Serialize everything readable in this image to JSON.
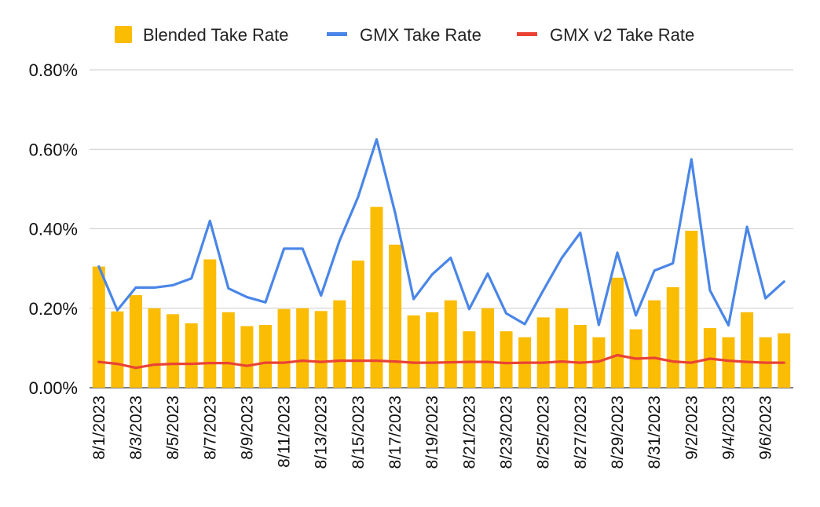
{
  "chart_data": {
    "type": "bar+line",
    "title": "",
    "xlabel": "",
    "ylabel": "",
    "ylim": [
      0,
      0.8
    ],
    "grid": true,
    "legend_position": "top",
    "y_ticks": [
      "0.00%",
      "0.20%",
      "0.40%",
      "0.60%",
      "0.80%"
    ],
    "y_tick_values": [
      0,
      0.2,
      0.4,
      0.6,
      0.8
    ],
    "categories": [
      "8/1/2023",
      "8/2/2023",
      "8/3/2023",
      "8/4/2023",
      "8/5/2023",
      "8/6/2023",
      "8/7/2023",
      "8/8/2023",
      "8/9/2023",
      "8/10/2023",
      "8/11/2023",
      "8/12/2023",
      "8/13/2023",
      "8/14/2023",
      "8/15/2023",
      "8/16/2023",
      "8/17/2023",
      "8/18/2023",
      "8/19/2023",
      "8/20/2023",
      "8/21/2023",
      "8/22/2023",
      "8/23/2023",
      "8/24/2023",
      "8/25/2023",
      "8/26/2023",
      "8/27/2023",
      "8/28/2023",
      "8/29/2023",
      "8/30/2023",
      "8/31/2023",
      "9/1/2023",
      "9/2/2023",
      "9/3/2023",
      "9/4/2023",
      "9/5/2023",
      "9/6/2023",
      "9/7/2023"
    ],
    "x_tick_labels_shown": [
      "8/1/2023",
      "8/3/2023",
      "8/5/2023",
      "8/7/2023",
      "8/9/2023",
      "8/11/2023",
      "8/13/2023",
      "8/15/2023",
      "8/17/2023",
      "8/19/2023",
      "8/21/2023",
      "8/23/2023",
      "8/25/2023",
      "8/27/2023",
      "8/29/2023",
      "8/31/2023",
      "9/2/2023",
      "9/4/2023",
      "9/6/2023"
    ],
    "series": [
      {
        "name": "Blended Take Rate",
        "kind": "bar",
        "color": "#fbbc04",
        "values": [
          0.305,
          0.192,
          0.233,
          0.2,
          0.185,
          0.162,
          0.323,
          0.19,
          0.155,
          0.158,
          0.198,
          0.2,
          0.193,
          0.22,
          0.32,
          0.455,
          0.36,
          0.182,
          0.19,
          0.22,
          0.142,
          0.2,
          0.142,
          0.127,
          0.177,
          0.2,
          0.158,
          0.127,
          0.277,
          0.147,
          0.22,
          0.253,
          0.395,
          0.15,
          0.127,
          0.19,
          0.127,
          0.137
        ]
      },
      {
        "name": "GMX Take Rate",
        "kind": "line",
        "color": "#4a86e8",
        "values": [
          0.305,
          0.195,
          0.252,
          0.252,
          0.258,
          0.275,
          0.42,
          0.25,
          0.228,
          0.215,
          0.35,
          0.35,
          0.232,
          0.37,
          0.48,
          0.625,
          0.44,
          0.223,
          0.285,
          0.327,
          0.198,
          0.287,
          0.187,
          0.16,
          0.245,
          0.327,
          0.39,
          0.158,
          0.34,
          0.182,
          0.295,
          0.313,
          0.575,
          0.245,
          0.157,
          0.405,
          0.225,
          0.267
        ]
      },
      {
        "name": "GMX v2 Take Rate",
        "kind": "line",
        "color": "#ea4335",
        "values": [
          0.065,
          0.06,
          0.05,
          0.058,
          0.06,
          0.06,
          0.062,
          0.062,
          0.055,
          0.063,
          0.063,
          0.068,
          0.065,
          0.068,
          0.068,
          0.068,
          0.066,
          0.063,
          0.063,
          0.064,
          0.065,
          0.065,
          0.062,
          0.063,
          0.063,
          0.066,
          0.063,
          0.066,
          0.082,
          0.073,
          0.075,
          0.066,
          0.063,
          0.073,
          0.068,
          0.065,
          0.063,
          0.063
        ]
      }
    ]
  }
}
